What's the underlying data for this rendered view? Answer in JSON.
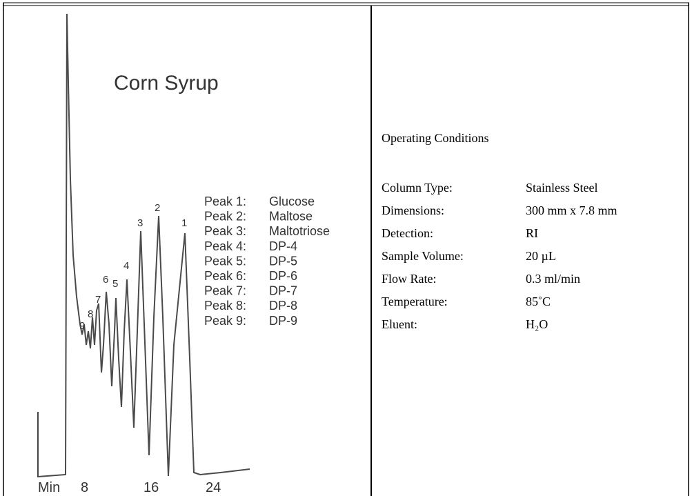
{
  "chromatogram": {
    "title": "Corn Syrup",
    "peak_numbers": [
      "1",
      "2",
      "3",
      "4",
      "5",
      "6",
      "7",
      "8",
      "9"
    ],
    "legend": [
      {
        "peak": "Peak 1:",
        "compound": "Glucose"
      },
      {
        "peak": "Peak 2:",
        "compound": "Maltose"
      },
      {
        "peak": "Peak 3:",
        "compound": "Maltotriose"
      },
      {
        "peak": "Peak 4:",
        "compound": "DP-4"
      },
      {
        "peak": "Peak 5:",
        "compound": "DP-5"
      },
      {
        "peak": "Peak 6:",
        "compound": "DP-6"
      },
      {
        "peak": "Peak 7:",
        "compound": "DP-7"
      },
      {
        "peak": "Peak 8:",
        "compound": "DP-8"
      },
      {
        "peak": "Peak 9:",
        "compound": "DP-9"
      }
    ],
    "axis_unit": "Min",
    "axis_ticks": [
      "8",
      "16",
      "24"
    ]
  },
  "conditions": {
    "heading": "Operating Conditions",
    "rows": [
      [
        "Column Type:",
        "Stainless Steel"
      ],
      [
        "Dimensions:",
        "300 mm x 7.8 mm"
      ],
      [
        "Detection:",
        "RI"
      ],
      [
        "Sample Volume:",
        "20 µL"
      ],
      [
        "Flow Rate:",
        "0.3 ml/min"
      ],
      [
        "Temperature:",
        "85˚C"
      ],
      [
        "Eluent:",
        "H₂O"
      ]
    ]
  }
}
